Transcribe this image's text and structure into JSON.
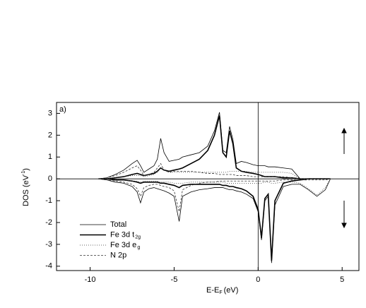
{
  "chart_data": {
    "type": "line",
    "annotation": "a)",
    "xlabel": [
      "E-E",
      "F",
      "(eV)"
    ],
    "ylabel": [
      "DOS (eV",
      "-1",
      ")"
    ],
    "xlim": [
      -12,
      6
    ],
    "ylim": [
      -4.2,
      3.5
    ],
    "xticks": [
      -10,
      -5,
      0,
      5
    ],
    "yticks": [
      -4,
      -3,
      -2,
      -1,
      0,
      1,
      2,
      3
    ],
    "x": [
      -9.5,
      -9,
      -8.5,
      -8,
      -7.5,
      -7.2,
      -7,
      -6.8,
      -6.5,
      -6.2,
      -6,
      -5.8,
      -5.6,
      -5.3,
      -5,
      -4.7,
      -4.5,
      -4,
      -3.5,
      -3,
      -2.6,
      -2.3,
      -2.1,
      -1.9,
      -1.7,
      -1.5,
      -1.3,
      -1,
      -0.7,
      -0.3,
      0,
      0.2,
      0.4,
      0.6,
      0.8,
      1,
      1.5,
      2,
      2.5,
      3,
      3.5,
      4,
      4.3
    ],
    "series": [
      {
        "name": [
          "Total"
        ],
        "color": "#000000",
        "width": 0.8,
        "dash": "none",
        "values": [
          0,
          0.05,
          0.2,
          0.4,
          0.7,
          0.85,
          0.6,
          0.3,
          0.45,
          0.6,
          0.9,
          1.85,
          1.2,
          0.8,
          0.85,
          0.9,
          1.0,
          1.1,
          1.2,
          1.5,
          2.2,
          3.05,
          1.3,
          1.2,
          2.4,
          1.8,
          0.7,
          0.8,
          0.75,
          0.65,
          0.6,
          0.6,
          0.6,
          0.55,
          0.55,
          0.55,
          0.5,
          0.45,
          0,
          0,
          0,
          0,
          0
        ],
        "values_down": [
          0,
          -0.05,
          -0.15,
          -0.2,
          -0.35,
          -0.6,
          -1.1,
          -0.6,
          -0.45,
          -0.4,
          -0.45,
          -0.5,
          -0.55,
          -0.65,
          -0.8,
          -1.95,
          -0.8,
          -0.6,
          -0.5,
          -0.45,
          -0.4,
          -0.4,
          -0.4,
          -0.45,
          -0.5,
          -0.5,
          -0.55,
          -0.6,
          -0.7,
          -0.9,
          -1.5,
          -2.8,
          -1.0,
          -0.8,
          -3.85,
          -1.2,
          -0.35,
          -0.25,
          -0.25,
          -0.5,
          -0.8,
          -0.5,
          0
        ]
      },
      {
        "name": [
          "Fe 3d t",
          "2g"
        ],
        "color": "#000000",
        "width": 1.6,
        "dash": "none",
        "values": [
          0,
          0,
          0.05,
          0.1,
          0.2,
          0.25,
          0.2,
          0.15,
          0.2,
          0.25,
          0.35,
          0.5,
          0.4,
          0.35,
          0.4,
          0.45,
          0.5,
          0.7,
          0.9,
          1.3,
          2.0,
          2.9,
          1.2,
          1.0,
          2.2,
          1.6,
          0.5,
          0.35,
          0.3,
          0.25,
          0.2,
          0.15,
          0.1,
          0.1,
          0.1,
          0.1,
          0.05,
          0.05,
          0,
          0,
          0,
          0,
          0
        ],
        "values_down": [
          0,
          0,
          -0.05,
          -0.05,
          -0.1,
          -0.15,
          -0.2,
          -0.15,
          -0.15,
          -0.15,
          -0.15,
          -0.2,
          -0.2,
          -0.25,
          -0.3,
          -0.4,
          -0.3,
          -0.25,
          -0.25,
          -0.25,
          -0.25,
          -0.25,
          -0.3,
          -0.3,
          -0.35,
          -0.35,
          -0.4,
          -0.45,
          -0.55,
          -0.8,
          -1.4,
          -2.7,
          -0.9,
          -0.7,
          -3.75,
          -1.0,
          -0.2,
          -0.1,
          -0.05,
          0,
          0,
          0,
          0
        ]
      },
      {
        "name": [
          "Fe 3d e",
          "g"
        ],
        "color": "#333333",
        "width": 0.8,
        "dash": "1 2",
        "values": [
          0,
          0,
          0.05,
          0.1,
          0.15,
          0.15,
          0.15,
          0.1,
          0.15,
          0.2,
          0.3,
          0.5,
          0.4,
          0.3,
          0.3,
          0.3,
          0.3,
          0.3,
          0.3,
          0.3,
          0.3,
          0.3,
          0.3,
          0.3,
          0.35,
          0.35,
          0.35,
          0.35,
          0.35,
          0.3,
          0.3,
          0.3,
          0.3,
          0.3,
          0.3,
          0.3,
          0.3,
          0.25,
          0,
          0,
          0,
          0,
          0
        ],
        "values_down": [
          0,
          0,
          -0.05,
          -0.05,
          -0.1,
          -0.1,
          -0.15,
          -0.1,
          -0.1,
          -0.1,
          -0.1,
          -0.15,
          -0.15,
          -0.15,
          -0.2,
          -0.2,
          -0.2,
          -0.15,
          -0.15,
          -0.15,
          -0.15,
          -0.15,
          -0.15,
          -0.2,
          -0.2,
          -0.2,
          -0.2,
          -0.2,
          -0.2,
          -0.2,
          -0.2,
          -0.2,
          -0.15,
          -0.15,
          -0.2,
          -0.2,
          -0.15,
          -0.15,
          -0.2,
          -0.45,
          -0.75,
          -0.4,
          0
        ]
      },
      {
        "name": [
          "N 2p"
        ],
        "color": "#333333",
        "width": 0.8,
        "dash": "3 2",
        "values": [
          0,
          0.05,
          0.15,
          0.3,
          0.5,
          0.6,
          0.4,
          0.15,
          0.2,
          0.3,
          0.5,
          0.7,
          0.4,
          0.3,
          0.35,
          0.35,
          0.35,
          0.35,
          0.3,
          0.25,
          0.25,
          0.2,
          0.2,
          0.2,
          0.2,
          0.2,
          0.15,
          0.15,
          0.15,
          0.1,
          0.1,
          0.1,
          0.1,
          0.1,
          0.1,
          0.1,
          0.1,
          0.05,
          0,
          0,
          0,
          0,
          0
        ],
        "values_down": [
          0,
          -0.05,
          -0.1,
          -0.15,
          -0.25,
          -0.45,
          -0.8,
          -0.4,
          -0.3,
          -0.25,
          -0.25,
          -0.3,
          -0.35,
          -0.4,
          -0.55,
          -1.5,
          -0.5,
          -0.3,
          -0.2,
          -0.15,
          -0.15,
          -0.1,
          -0.1,
          -0.1,
          -0.1,
          -0.1,
          -0.1,
          -0.1,
          -0.1,
          -0.1,
          -0.1,
          -0.1,
          -0.1,
          -0.1,
          -0.1,
          -0.1,
          -0.05,
          -0.05,
          -0.05,
          -0.05,
          -0.05,
          -0.05,
          0
        ]
      }
    ]
  }
}
